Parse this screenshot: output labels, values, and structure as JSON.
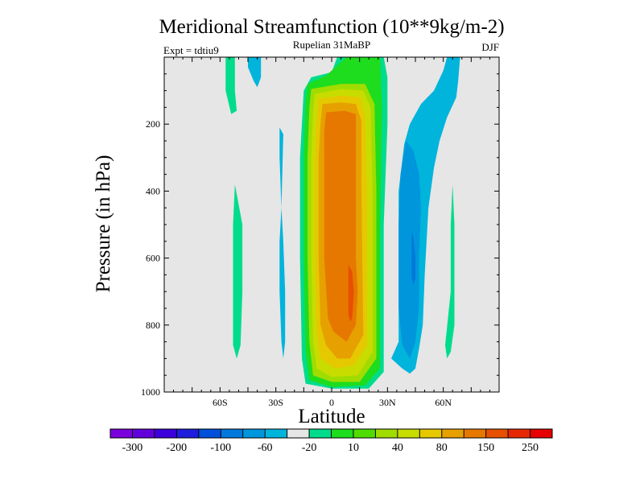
{
  "chart_data": {
    "type": "contour",
    "title": "Meridional Streamfunction (10**9kg/m-2)",
    "subtitle_center": "Rupelian  31MaBP",
    "subtitle_left": "Expt = tdtiu9",
    "subtitle_right": "DJF",
    "xlabel": "Latitude",
    "ylabel": "Pressure (in hPa)",
    "x_range": [
      -90,
      90
    ],
    "y_range": [
      0,
      1000
    ],
    "y_inverted": true,
    "x_ticks": [
      {
        "value": -60,
        "label": "60S"
      },
      {
        "value": -30,
        "label": "30S"
      },
      {
        "value": 0,
        "label": "0"
      },
      {
        "value": 30,
        "label": "30N"
      },
      {
        "value": 60,
        "label": "60N"
      }
    ],
    "y_ticks": [
      {
        "value": 200,
        "label": "200"
      },
      {
        "value": 400,
        "label": "400"
      },
      {
        "value": 600,
        "label": "600"
      },
      {
        "value": 800,
        "label": "800"
      },
      {
        "value": 1000,
        "label": "1000"
      }
    ],
    "colorbar": {
      "colors": [
        "#7a00dc",
        "#6200dc",
        "#3c00dc",
        "#1e1edc",
        "#0050dc",
        "#0078dc",
        "#0096dc",
        "#00b4dc",
        "#e6e6e6",
        "#00dc8c",
        "#1edc1e",
        "#50dc00",
        "#a0dc00",
        "#c8dc00",
        "#e6c800",
        "#e6a000",
        "#e67800",
        "#e65000",
        "#e62800",
        "#e60000"
      ],
      "labels": [
        {
          "boundary": 1,
          "text": "-300"
        },
        {
          "boundary": 3,
          "text": "-200"
        },
        {
          "boundary": 5,
          "text": "-100"
        },
        {
          "boundary": 7,
          "text": "-60"
        },
        {
          "boundary": 9,
          "text": "-20"
        },
        {
          "boundary": 11,
          "text": "10"
        },
        {
          "boundary": 13,
          "text": "40"
        },
        {
          "boundary": 15,
          "text": "80"
        },
        {
          "boundary": 17,
          "text": "150"
        },
        {
          "boundary": 19,
          "text": "250"
        }
      ]
    },
    "contour_regions": [
      {
        "name": "hadley-cell-level-1",
        "fill": "#00dc8c",
        "points": [
          [
            -11,
            60
          ],
          [
            0,
            45
          ],
          [
            3,
            0
          ],
          [
            28,
            0
          ],
          [
            30,
            60
          ],
          [
            30,
            200
          ],
          [
            28,
            500
          ],
          [
            28,
            940
          ],
          [
            20,
            990
          ],
          [
            0,
            990
          ],
          [
            -14,
            975
          ],
          [
            -16,
            900
          ],
          [
            -17,
            600
          ],
          [
            -17,
            300
          ],
          [
            -15,
            100
          ]
        ]
      },
      {
        "name": "hadley-cell-level-2",
        "fill": "#1edc1e",
        "points": [
          [
            -13,
            80
          ],
          [
            -3,
            55
          ],
          [
            8,
            0
          ],
          [
            26,
            0
          ],
          [
            27,
            150
          ],
          [
            26,
            500
          ],
          [
            26,
            930
          ],
          [
            18,
            980
          ],
          [
            0,
            985
          ],
          [
            -12,
            965
          ],
          [
            -14,
            880
          ],
          [
            -15,
            600
          ],
          [
            -15,
            300
          ],
          [
            -14,
            130
          ]
        ]
      },
      {
        "name": "hadley-cell-level-3",
        "fill": "#a0dc00",
        "points": [
          [
            -11,
            95
          ],
          [
            5,
            80
          ],
          [
            18,
            80
          ],
          [
            23,
            140
          ],
          [
            24,
            400
          ],
          [
            24,
            900
          ],
          [
            15,
            970
          ],
          [
            0,
            970
          ],
          [
            -10,
            950
          ],
          [
            -12,
            850
          ],
          [
            -13,
            600
          ],
          [
            -13,
            300
          ],
          [
            -12,
            150
          ]
        ]
      },
      {
        "name": "hadley-cell-level-4",
        "fill": "#c8dc00",
        "points": [
          [
            -9,
            110
          ],
          [
            5,
            95
          ],
          [
            17,
            100
          ],
          [
            21,
            150
          ],
          [
            22,
            400
          ],
          [
            22,
            880
          ],
          [
            14,
            950
          ],
          [
            0,
            955
          ],
          [
            -8,
            930
          ],
          [
            -10,
            850
          ],
          [
            -11,
            600
          ],
          [
            -11,
            300
          ],
          [
            -10,
            160
          ]
        ]
      },
      {
        "name": "hadley-cell-level-5",
        "fill": "#e6c800",
        "points": [
          [
            -7,
            125
          ],
          [
            5,
            115
          ],
          [
            15,
            120
          ],
          [
            18,
            170
          ],
          [
            19,
            400
          ],
          [
            19,
            860
          ],
          [
            12,
            920
          ],
          [
            2,
            930
          ],
          [
            -6,
            900
          ],
          [
            -8,
            830
          ],
          [
            -9,
            600
          ],
          [
            -9,
            300
          ],
          [
            -8,
            180
          ]
        ]
      },
      {
        "name": "hadley-cell-level-6",
        "fill": "#e6a000",
        "points": [
          [
            -5,
            140
          ],
          [
            5,
            135
          ],
          [
            13,
            140
          ],
          [
            16,
            190
          ],
          [
            16,
            400
          ],
          [
            17,
            830
          ],
          [
            10,
            900
          ],
          [
            3,
            900
          ],
          [
            -3,
            860
          ],
          [
            -6,
            800
          ],
          [
            -7,
            600
          ],
          [
            -7,
            300
          ],
          [
            -6,
            200
          ]
        ]
      },
      {
        "name": "hadley-cell-level-7",
        "fill": "#e67800",
        "points": [
          [
            -3,
            165
          ],
          [
            7,
            160
          ],
          [
            13,
            170
          ],
          [
            13,
            400
          ],
          [
            13,
            600
          ],
          [
            14,
            700
          ],
          [
            13,
            800
          ],
          [
            8,
            850
          ],
          [
            1,
            820
          ],
          [
            -2,
            780
          ],
          [
            -4,
            600
          ],
          [
            -4,
            400
          ],
          [
            -4,
            220
          ]
        ]
      },
      {
        "name": "hadley-cell-core",
        "fill": "#e65000",
        "points": [
          [
            9,
            620
          ],
          [
            11,
            640
          ],
          [
            12,
            700
          ],
          [
            11,
            780
          ],
          [
            10,
            790
          ],
          [
            9,
            770
          ],
          [
            9,
            700
          ]
        ]
      },
      {
        "name": "ferrel-cell-level-1",
        "fill": "#00b4dc",
        "points": [
          [
            42,
            0
          ],
          [
            62,
            0
          ],
          [
            60,
            40
          ],
          [
            55,
            100
          ],
          [
            48,
            140
          ],
          [
            42,
            200
          ],
          [
            39,
            260
          ],
          [
            36,
            400
          ],
          [
            36,
            650
          ],
          [
            36,
            850
          ],
          [
            32,
            900
          ],
          [
            38,
            930
          ],
          [
            42,
            945
          ],
          [
            45,
            930
          ],
          [
            47,
            870
          ],
          [
            49,
            800
          ],
          [
            50,
            650
          ],
          [
            52,
            450
          ],
          [
            55,
            330
          ],
          [
            58,
            250
          ],
          [
            62,
            180
          ],
          [
            67,
            120
          ],
          [
            68,
            70
          ],
          [
            69,
            0
          ]
        ]
      },
      {
        "name": "ferrel-cell-level-2",
        "fill": "#0096dc",
        "points": [
          [
            40,
            250
          ],
          [
            44,
            280
          ],
          [
            47,
            350
          ],
          [
            48,
            450
          ],
          [
            47,
            600
          ],
          [
            47,
            750
          ],
          [
            45,
            850
          ],
          [
            42,
            900
          ],
          [
            38,
            860
          ],
          [
            36,
            750
          ],
          [
            36,
            500
          ],
          [
            37,
            350
          ]
        ]
      },
      {
        "name": "ferrel-cell-core",
        "fill": "#0078dc",
        "points": [
          [
            43,
            520
          ],
          [
            44,
            540
          ],
          [
            45,
            600
          ],
          [
            45,
            660
          ],
          [
            44,
            680
          ],
          [
            43,
            660
          ],
          [
            43,
            560
          ]
        ]
      },
      {
        "name": "polar-negative-north",
        "fill": "#00b4dc",
        "points": [
          [
            65,
            0
          ],
          [
            69,
            0
          ],
          [
            68,
            60
          ],
          [
            66,
            110
          ]
        ]
      },
      {
        "name": "polar-negative-south",
        "fill": "#00b4dc",
        "points": [
          [
            -45,
            0
          ],
          [
            -38,
            0
          ],
          [
            -38,
            60
          ],
          [
            -40,
            90
          ],
          [
            -42,
            70
          ],
          [
            -45,
            30
          ]
        ]
      },
      {
        "name": "south-positive-upper",
        "fill": "#00dc8c",
        "points": [
          [
            -57,
            0
          ],
          [
            -52,
            0
          ],
          [
            -52,
            100
          ],
          [
            -51,
            160
          ],
          [
            -54,
            170
          ],
          [
            -57,
            100
          ]
        ]
      },
      {
        "name": "south-positive-lower",
        "fill": "#00dc8c",
        "points": [
          [
            -52,
            380
          ],
          [
            -48,
            500
          ],
          [
            -48,
            700
          ],
          [
            -49,
            860
          ],
          [
            -51,
            900
          ],
          [
            -53,
            860
          ],
          [
            -53,
            500
          ]
        ]
      },
      {
        "name": "south-negative-strip",
        "fill": "#00b4dc",
        "points": [
          [
            -28,
            210
          ],
          [
            -26,
            230
          ],
          [
            -27,
            450
          ],
          [
            -26,
            550
          ],
          [
            -25,
            700
          ],
          [
            -25,
            850
          ],
          [
            -26,
            900
          ],
          [
            -27,
            850
          ],
          [
            -28,
            700
          ],
          [
            -28,
            550
          ],
          [
            -27,
            450
          ],
          [
            -28,
            300
          ]
        ]
      },
      {
        "name": "north-positive-strip",
        "fill": "#00dc8c",
        "points": [
          [
            65,
            380
          ],
          [
            66,
            500
          ],
          [
            66,
            800
          ],
          [
            64,
            880
          ],
          [
            62,
            900
          ],
          [
            61,
            860
          ],
          [
            64,
            700
          ],
          [
            64,
            500
          ]
        ]
      }
    ]
  }
}
